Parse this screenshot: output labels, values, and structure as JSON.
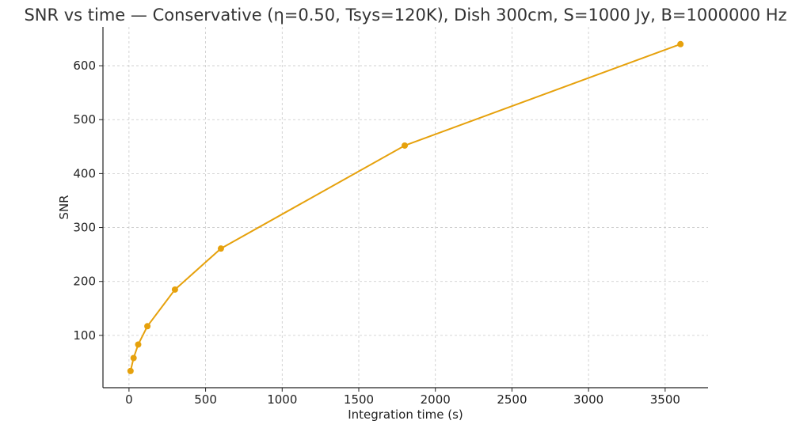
{
  "chart_data": {
    "type": "line",
    "title": "SNR vs time — Conservative (η=0.50, Tsys=120K), Dish 300cm, S=1000 Jy, B=1000000 Hz",
    "xlabel": "Integration time (s)",
    "ylabel": "SNR",
    "xlim": [
      -170,
      3780
    ],
    "ylim": [
      3,
      672
    ],
    "xticks": [
      0,
      500,
      1000,
      1500,
      2000,
      2500,
      3000,
      3500
    ],
    "yticks": [
      100,
      200,
      300,
      400,
      500,
      600
    ],
    "grid": true,
    "series": [
      {
        "color": "#e6a10c",
        "x": [
          10,
          30,
          60,
          120,
          300,
          600,
          1800,
          3600
        ],
        "y": [
          34,
          58,
          83,
          117,
          185,
          261,
          452,
          640
        ]
      }
    ]
  }
}
